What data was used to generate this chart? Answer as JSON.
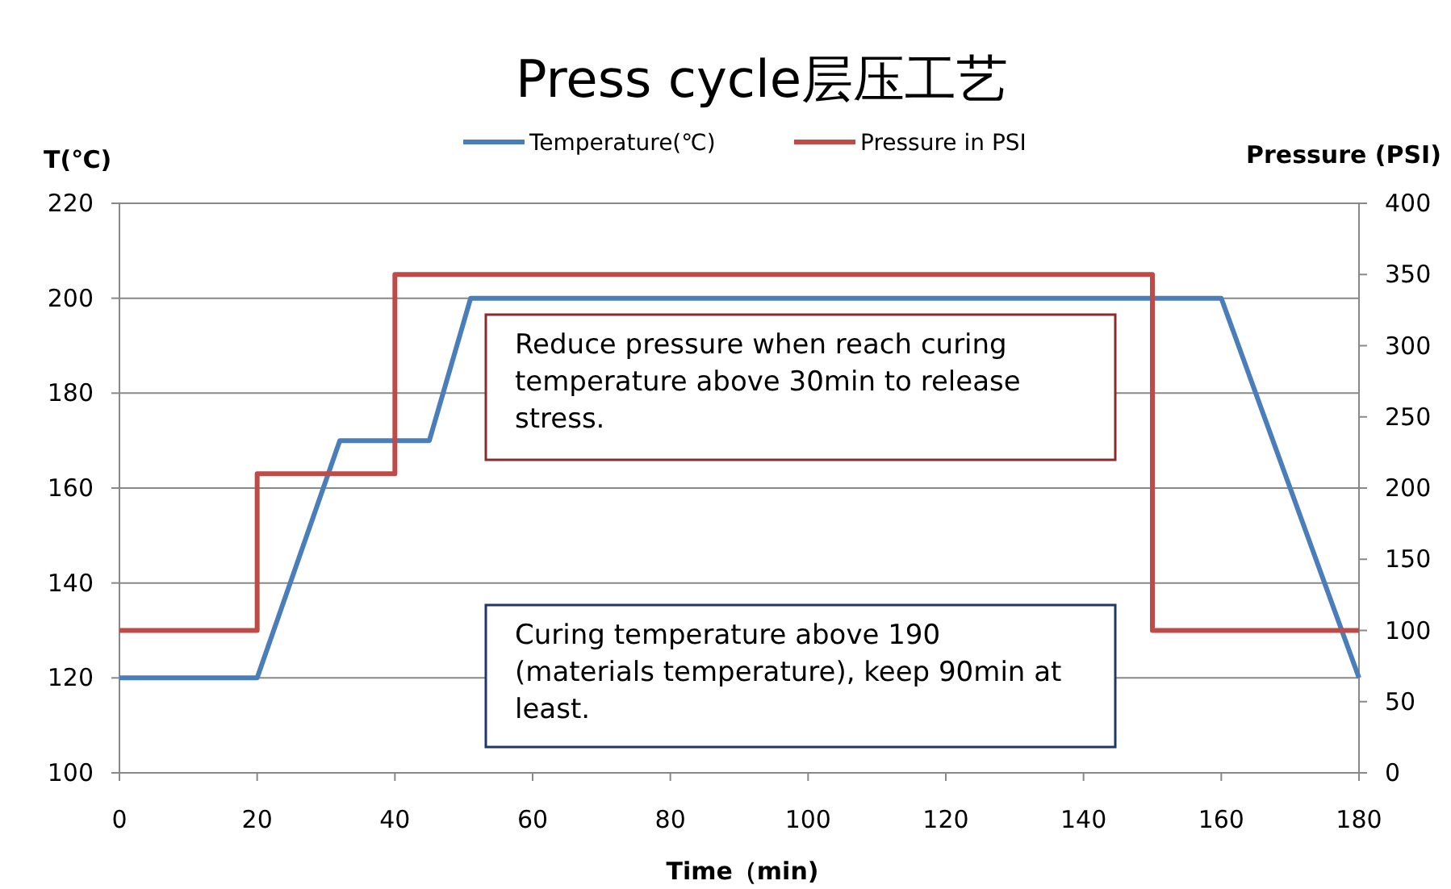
{
  "chart_data": {
    "type": "line",
    "title": "Press cycle层压工艺",
    "xlabel": "Time（min)",
    "ylabel": "T(℃)",
    "y2label": "Pressure (PSI)",
    "xlim": [
      0,
      180
    ],
    "xticks": [
      0,
      20,
      40,
      60,
      80,
      100,
      120,
      140,
      160,
      180
    ],
    "ylim": [
      100,
      220
    ],
    "yticks": [
      100,
      120,
      140,
      160,
      180,
      200,
      220
    ],
    "y2lim": [
      0,
      400
    ],
    "y2ticks": [
      0,
      50,
      100,
      150,
      200,
      250,
      300,
      350,
      400
    ],
    "grid": "y",
    "legend": "top",
    "marker": "none",
    "line_style": "solid",
    "series": [
      {
        "name": "Temperature(℃)",
        "color": "#4a7ebb",
        "x": [
          0,
          20,
          32,
          45,
          51,
          160,
          180
        ],
        "values": [
          120,
          120,
          170,
          170,
          200,
          200,
          120
        ]
      },
      {
        "name": "Pressure in PSI",
        "color": "#be4b48",
        "axis": "y2",
        "x": [
          0,
          20,
          20,
          40,
          40,
          150,
          150,
          180
        ],
        "values": [
          100,
          100,
          210,
          210,
          350,
          350,
          100,
          100
        ]
      }
    ],
    "annotations": [
      "Reduce pressure when reach curing temperature above 30min to release stress.",
      "Curing temperature above 190 (materials temperature), keep 90min at least."
    ]
  }
}
